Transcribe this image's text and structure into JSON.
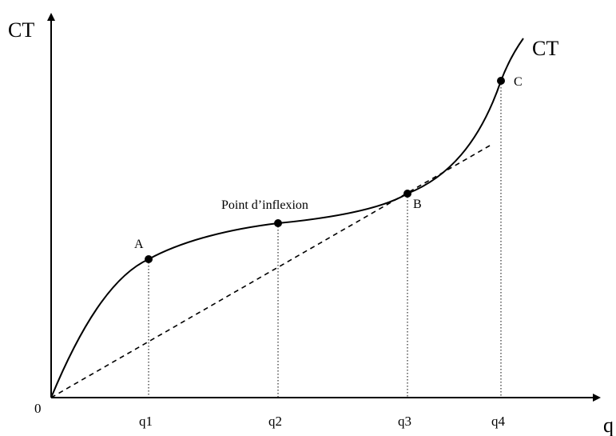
{
  "axes": {
    "y_label": "CT",
    "x_label": "q",
    "origin_label": "0"
  },
  "curve": {
    "label": "CT"
  },
  "ticks": [
    "q1",
    "q2",
    "q3",
    "q4"
  ],
  "points": {
    "A": "A",
    "B": "B",
    "C": "C",
    "inflection": "Point d’inflexion"
  }
}
